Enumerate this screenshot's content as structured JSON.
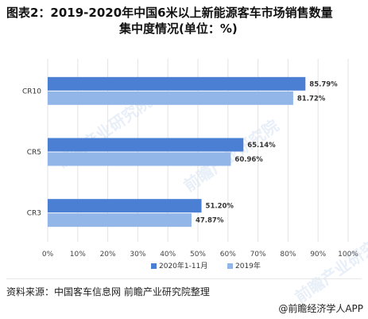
{
  "title": {
    "line1": "图表2：2019-2020年中国6米以上新能源客车市场销售数量",
    "line2": "集中度情况(单位：%)"
  },
  "source": "资料来源：中国客车信息网 前瞻产业研究院整理",
  "brand": "@前瞻经济学人APP",
  "watermark": "前瞻产业研究院",
  "chart_data": {
    "type": "bar",
    "orientation": "horizontal",
    "categories": [
      "CR10",
      "CR5",
      "CR3"
    ],
    "series": [
      {
        "name": "2020年1-11月",
        "color": "#4a7fd4",
        "values": [
          85.79,
          65.14,
          51.2
        ]
      },
      {
        "name": "2019年",
        "color": "#93b6e9",
        "values": [
          81.72,
          60.96,
          47.87
        ]
      }
    ],
    "data_labels": [
      [
        "85.79%",
        "65.14%",
        "51.20%"
      ],
      [
        "81.72%",
        "60.96%",
        "47.87%"
      ]
    ],
    "xlim": [
      0,
      100
    ],
    "xticks": [
      "0%",
      "10%",
      "20%",
      "30%",
      "40%",
      "50%",
      "60%",
      "70%",
      "80%",
      "90%",
      "100%"
    ],
    "grid": true,
    "legend_position": "bottom"
  }
}
